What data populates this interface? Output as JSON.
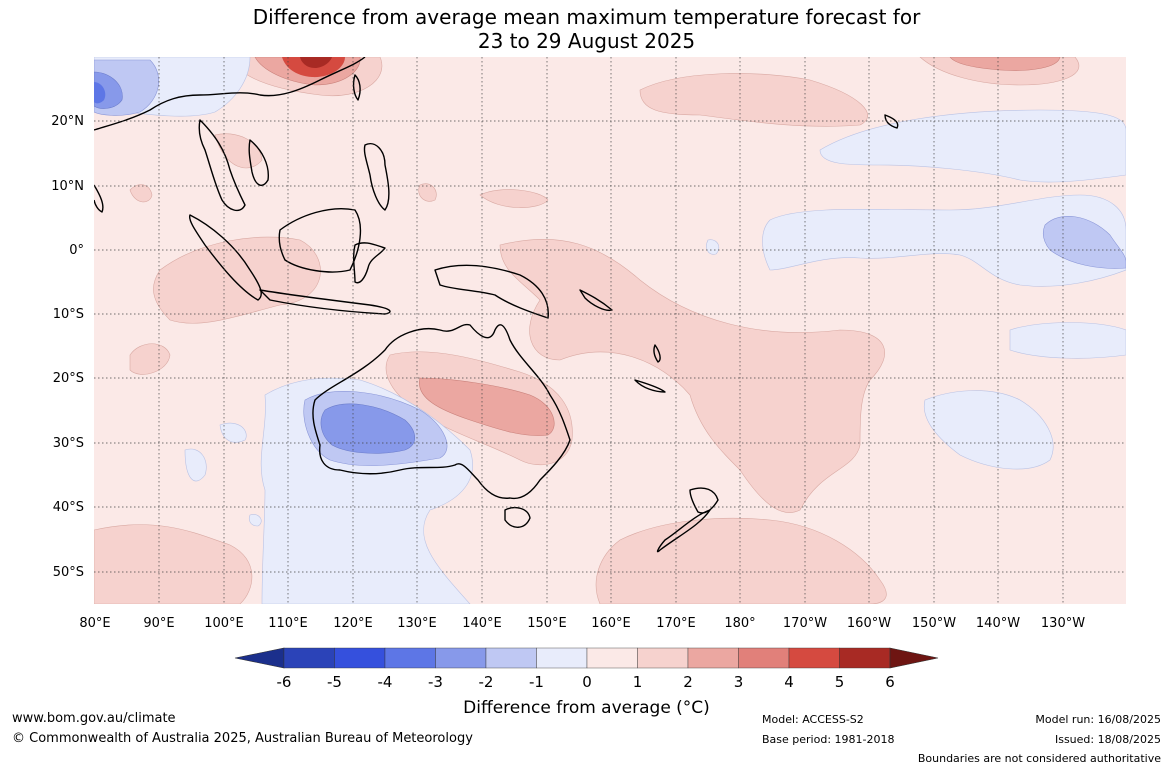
{
  "title_line1": "Difference from average mean maximum temperature forecast for",
  "title_line2": "23 to 29 August 2025",
  "map": {
    "lat_labels": [
      "20°N",
      "10°N",
      "0°",
      "10°S",
      "20°S",
      "30°S",
      "40°S",
      "50°S"
    ],
    "lon_labels": [
      "80°E",
      "90°E",
      "100°E",
      "110°E",
      "120°E",
      "130°E",
      "140°E",
      "150°E",
      "160°E",
      "170°E",
      "180°",
      "170°W",
      "160°W",
      "150°W",
      "140°W",
      "130°W"
    ],
    "background_anomaly_color": "#fbe9e7",
    "ocean_grid": "dotted"
  },
  "colorbar": {
    "title": "Difference from average (°C)",
    "ticks": [
      "-6",
      "-5",
      "-4",
      "-3",
      "-2",
      "-1",
      "0",
      "1",
      "2",
      "3",
      "4",
      "5",
      "6"
    ],
    "colors": [
      "#1b2f8c",
      "#2b43b8",
      "#3550dd",
      "#5d76e6",
      "#8799ea",
      "#bfc8f3",
      "#e8ecfb",
      "#fbe9e7",
      "#f6d2ce",
      "#eba7a1",
      "#e1807a",
      "#d54a40",
      "#a82a24",
      "#6e1512"
    ]
  },
  "footer": {
    "website": "www.bom.gov.au/climate",
    "copyright": "© Commonwealth of Australia 2025, Australian Bureau of Meteorology",
    "model": "Model: ACCESS-S2",
    "base_period": "Base period: 1981-2018",
    "model_run": "Model run: 16/08/2025",
    "issued": "Issued: 18/08/2025",
    "disclaimer": "Boundaries are not considered authoritative"
  }
}
